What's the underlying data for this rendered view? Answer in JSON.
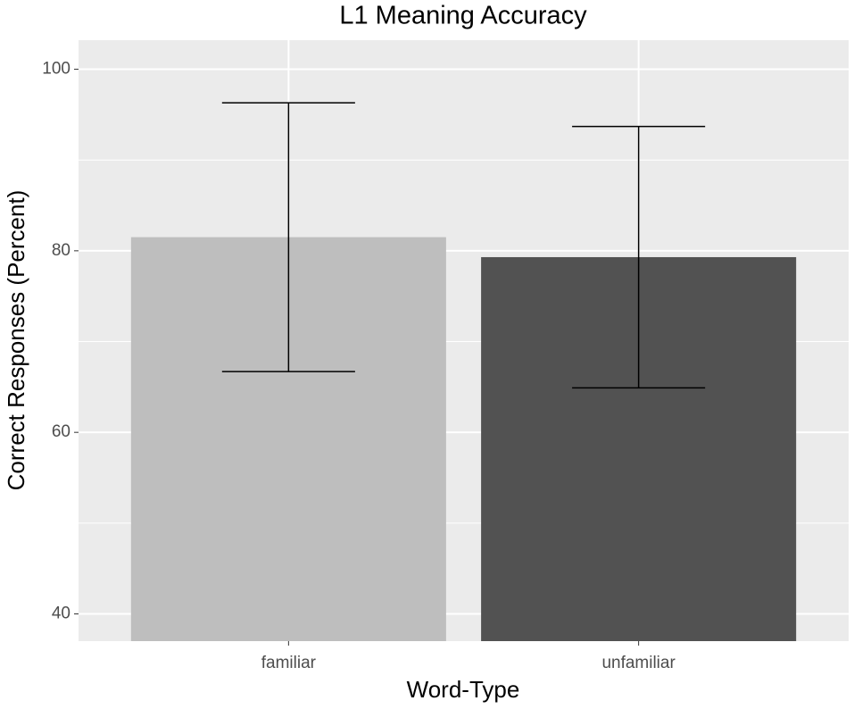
{
  "chart_data": {
    "type": "bar",
    "title": "L1 Meaning Accuracy",
    "x_label": "Word-Type",
    "y_label": "Correct Responses (Percent)",
    "categories": [
      "familiar",
      "unfamiliar"
    ],
    "values": [
      81.5,
      79.3
    ],
    "errors": [
      14.8,
      14.4
    ],
    "colors": [
      "#bebebe",
      "#525252"
    ],
    "ylim": [
      37,
      103.2
    ],
    "yticks": [
      40,
      60,
      80,
      100
    ],
    "y_minor_ticks": [
      50,
      70,
      90
    ],
    "grid": true
  }
}
